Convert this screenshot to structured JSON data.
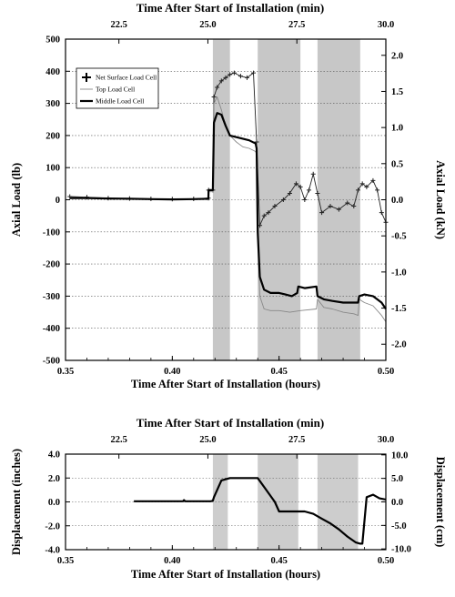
{
  "chart_data": [
    {
      "type": "line",
      "title": "Time After Start of Installation (min)",
      "xlabel": "Time After Start of Installation (hours)",
      "ylabel": "Axial Load (lb)",
      "y2label": "Axial Load (kN)",
      "xlim": [
        0.35,
        0.5
      ],
      "ylim": [
        -500,
        500
      ],
      "y2lim": [
        -2.224,
        2.224
      ],
      "grid": true,
      "legend_position": "top-left",
      "xticks": [
        0.35,
        0.4,
        0.45,
        0.5
      ],
      "xtick_labels": [
        "0.35",
        "0.40",
        "0.45",
        "0.50"
      ],
      "top_ticks": [
        22.5,
        25.0,
        27.5,
        30.0
      ],
      "top_tick_labels": [
        "22.5",
        "25.0",
        "27.5",
        "30.0"
      ],
      "yticks": [
        -500,
        -400,
        -300,
        -200,
        -100,
        0,
        100,
        200,
        300,
        400,
        500
      ],
      "ytick_labels": [
        "-500",
        "-400",
        "-300",
        "-200",
        "-100",
        "0",
        "100",
        "200",
        "300",
        "400",
        "500"
      ],
      "y2ticks": [
        -2.0,
        -1.5,
        -1.0,
        -0.5,
        0.0,
        0.5,
        1.0,
        1.5,
        2.0
      ],
      "y2tick_labels": [
        "-2.0",
        "-1.5",
        "-1.0",
        "-0.5",
        "0.0",
        "0.5",
        "1.0",
        "1.5",
        "2.0"
      ],
      "shaded_intervals": [
        [
          0.419,
          0.427
        ],
        [
          0.44,
          0.46
        ],
        [
          0.468,
          0.488
        ]
      ],
      "shade_color": "#bdbdbd",
      "series": [
        {
          "name": "Net Surface Load Cell",
          "style": "plus-marker",
          "color": "#222222",
          "x": [
            0.352,
            0.36,
            0.37,
            0.38,
            0.39,
            0.4,
            0.41,
            0.4169,
            0.417,
            0.419,
            0.4195,
            0.421,
            0.423,
            0.425,
            0.427,
            0.429,
            0.432,
            0.435,
            0.438,
            0.4395,
            0.441,
            0.443,
            0.445,
            0.448,
            0.452,
            0.455,
            0.458,
            0.46,
            0.462,
            0.464,
            0.466,
            0.468,
            0.47,
            0.474,
            0.478,
            0.482,
            0.485,
            0.487,
            0.489,
            0.491,
            0.494,
            0.496,
            0.498,
            0.5
          ],
          "y": [
            10,
            8,
            5,
            4,
            3,
            2,
            3,
            5,
            30,
            30,
            320,
            350,
            370,
            380,
            390,
            395,
            385,
            380,
            395,
            180,
            -80,
            -50,
            -40,
            -20,
            0,
            20,
            50,
            40,
            0,
            30,
            80,
            20,
            -40,
            -20,
            -30,
            -10,
            -20,
            30,
            50,
            40,
            60,
            30,
            -40,
            -70
          ]
        },
        {
          "name": "Top Load Cell",
          "style": "thin-line",
          "color": "#888888",
          "x": [
            0.352,
            0.36,
            0.37,
            0.38,
            0.39,
            0.4,
            0.41,
            0.4169,
            0.417,
            0.419,
            0.4195,
            0.421,
            0.423,
            0.425,
            0.427,
            0.43,
            0.433,
            0.436,
            0.439,
            0.4395,
            0.44,
            0.441,
            0.443,
            0.446,
            0.45,
            0.455,
            0.46,
            0.4675,
            0.468,
            0.471,
            0.475,
            0.48,
            0.485,
            0.487,
            0.4875,
            0.49,
            0.494,
            0.498,
            0.5
          ],
          "y": [
            8,
            6,
            4,
            3,
            2,
            1,
            2,
            4,
            25,
            25,
            300,
            320,
            280,
            230,
            200,
            180,
            165,
            160,
            150,
            140,
            -100,
            -300,
            -340,
            -345,
            -345,
            -350,
            -345,
            -340,
            -310,
            -335,
            -340,
            -350,
            -355,
            -360,
            -310,
            -320,
            -330,
            -360,
            -380
          ]
        },
        {
          "name": "Middle Load Cell",
          "style": "thick-line",
          "color": "#000000",
          "x": [
            0.352,
            0.36,
            0.37,
            0.38,
            0.39,
            0.4,
            0.41,
            0.4169,
            0.417,
            0.419,
            0.4195,
            0.421,
            0.423,
            0.425,
            0.427,
            0.43,
            0.433,
            0.436,
            0.439,
            0.4395,
            0.44,
            0.441,
            0.443,
            0.446,
            0.45,
            0.453,
            0.456,
            0.4585,
            0.459,
            0.462,
            0.4675,
            0.468,
            0.471,
            0.475,
            0.48,
            0.485,
            0.487,
            0.4875,
            0.49,
            0.494,
            0.498,
            0.5
          ],
          "y": [
            5,
            5,
            4,
            3,
            2,
            1,
            2,
            3,
            30,
            30,
            240,
            270,
            265,
            230,
            200,
            195,
            190,
            185,
            175,
            160,
            -100,
            -240,
            -280,
            -290,
            -290,
            -295,
            -300,
            -290,
            -270,
            -275,
            -270,
            -300,
            -310,
            -315,
            -320,
            -320,
            -320,
            -300,
            -295,
            -300,
            -320,
            -340
          ]
        }
      ]
    },
    {
      "type": "line",
      "title": "Time After Start of Installation (min)",
      "xlabel": "Time After Start of Installation (hours)",
      "ylabel": "Displacement (inches)",
      "y2label": "Displacement (cm)",
      "xlim": [
        0.35,
        0.5
      ],
      "ylim": [
        -4.0,
        4.0
      ],
      "y2lim": [
        -10.16,
        10.16
      ],
      "grid": true,
      "xticks": [
        0.35,
        0.4,
        0.45,
        0.5
      ],
      "xtick_labels": [
        "0.35",
        "0.40",
        "0.45",
        "0.50"
      ],
      "top_ticks": [
        22.5,
        25.0,
        27.5,
        30.0
      ],
      "top_tick_labels": [
        "22.5",
        "25.0",
        "27.5",
        "30.0"
      ],
      "yticks": [
        -4.0,
        -2.0,
        0.0,
        2.0,
        4.0
      ],
      "ytick_labels": [
        "-4.0",
        "-2.0",
        "0.0",
        "2.0",
        "4.0"
      ],
      "y2ticks": [
        -10.0,
        -5.0,
        0.0,
        5.0,
        10.0
      ],
      "y2tick_labels": [
        "-10.0",
        "-5.0",
        "0.0",
        "5.0",
        "10.0"
      ],
      "shaded_intervals": [
        [
          0.419,
          0.426
        ],
        [
          0.44,
          0.459
        ],
        [
          0.468,
          0.487
        ]
      ],
      "shade_color": "#c4c4c4",
      "series": [
        {
          "name": "",
          "style": "thick-line",
          "color": "#000000",
          "x": [
            0.382,
            0.39,
            0.4,
            0.405,
            0.4055,
            0.406,
            0.41,
            0.418,
            0.419,
            0.4195,
            0.423,
            0.427,
            0.43,
            0.433,
            0.436,
            0.44,
            0.444,
            0.448,
            0.45,
            0.458,
            0.462,
            0.466,
            0.47,
            0.474,
            0.478,
            0.482,
            0.486,
            0.488,
            0.489,
            0.491,
            0.494,
            0.497,
            0.5
          ],
          "y": [
            0.05,
            0.05,
            0.05,
            0.05,
            0.15,
            0.05,
            0.05,
            0.05,
            0.1,
            0.4,
            1.8,
            2.0,
            2.0,
            2.0,
            2.0,
            2.0,
            1.0,
            0.0,
            -0.8,
            -0.8,
            -0.8,
            -1.0,
            -1.4,
            -1.8,
            -2.3,
            -2.9,
            -3.4,
            -3.5,
            -3.5,
            0.4,
            0.6,
            0.3,
            0.2
          ]
        }
      ]
    }
  ]
}
